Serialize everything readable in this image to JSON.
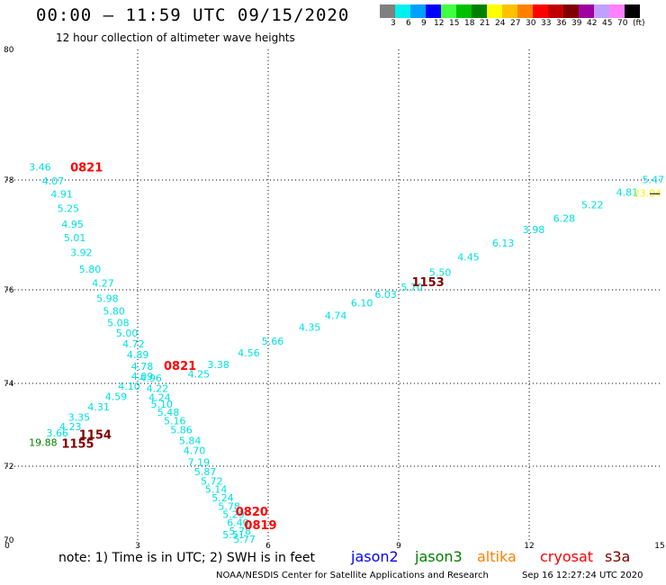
{
  "header": {
    "title": "00:00 — 11:59 UTC 09/15/2020",
    "subtitle": "12 hour collection of altimeter wave heights"
  },
  "colorbar": {
    "colors": [
      "#808080",
      "#00f0f0",
      "#00a0ff",
      "#0000ff",
      "#40ff40",
      "#00c000",
      "#008000",
      "#ffff00",
      "#ffc000",
      "#ff8000",
      "#ff0000",
      "#c00000",
      "#800000",
      "#a000a0",
      "#c0a0ff",
      "#ff80ff",
      "#000000"
    ],
    "labels": [
      "3",
      "6",
      "9",
      "12",
      "15",
      "18",
      "21",
      "24",
      "27",
      "30",
      "33",
      "36",
      "39",
      "42",
      "45",
      "70",
      "(ft)"
    ]
  },
  "footer": {
    "note": "note:  1) Time is in UTC;  2) SWH is in feet",
    "satellites": [
      {
        "name": "jason2",
        "color": "#0000ff"
      },
      {
        "name": "jason3",
        "color": "#008000"
      },
      {
        "name": "altika",
        "color": "#ff8000"
      },
      {
        "name": "cryosat",
        "color": "#ff0000"
      },
      {
        "name": "s3a",
        "color": "#800000"
      }
    ],
    "credit": "NOAA/NESDIS Center for Satellite Applications and Research",
    "timestamp": "Sep 16 12:27:24 UTC 2020"
  },
  "chart_data": {
    "type": "scatter",
    "xlim": [
      0,
      15
    ],
    "ylim": [
      70,
      80
    ],
    "x_ticks": [
      "0",
      "3",
      "6",
      "9",
      "12",
      "15"
    ],
    "y_ticks": [
      "70",
      "72",
      "74",
      "76",
      "78",
      "80"
    ],
    "grid": true,
    "tracks": [
      {
        "time": "0821",
        "time_color": "#ff0000",
        "color": "#00e0e0",
        "label_pos": [
          1.45,
          78.2
        ],
        "points": [
          [
            0.5,
            78.2
          ],
          [
            0.8,
            77.98
          ],
          [
            1.0,
            77.75
          ],
          [
            1.15,
            77.48
          ],
          [
            1.25,
            77.2
          ],
          [
            1.3,
            76.95
          ],
          [
            1.45,
            76.68
          ],
          [
            1.65,
            76.38
          ],
          [
            1.95,
            76.12
          ],
          [
            2.05,
            75.82
          ],
          [
            2.2,
            75.55
          ],
          [
            2.3,
            75.3
          ],
          [
            2.5,
            75.08
          ],
          [
            2.65,
            74.85
          ],
          [
            2.75,
            74.62
          ],
          [
            2.85,
            74.37
          ],
          [
            3.05,
            74.12
          ],
          [
            3.2,
            73.88
          ],
          [
            3.25,
            73.66
          ]
        ],
        "values": [
          "3.46",
          "4.07",
          "4.91",
          "5.25",
          "4.95",
          "5.01",
          "3.92",
          "5.80",
          "4.27",
          "5.98",
          "5.80",
          "5.08",
          "5.00",
          "4.72",
          "4.89",
          "4.78",
          "4.96",
          "4.22",
          "4.24"
        ]
      },
      {
        "time": "0821",
        "time_color": "#ff0000",
        "color": "#00e0e0",
        "label_pos": [
          3.6,
          74.38
        ],
        "points": [
          [
            2.85,
            74.15
          ],
          [
            2.55,
            73.93
          ],
          [
            2.25,
            73.68
          ],
          [
            1.85,
            73.43
          ],
          [
            1.4,
            73.18
          ],
          [
            1.2,
            72.96
          ],
          [
            0.9,
            72.8
          ],
          [
            0.5,
            72.58
          ]
        ],
        "values": [
          "4.09",
          "4.10",
          "4.59",
          "4.31",
          "3.35",
          "4.23",
          "3.66",
          "19.88"
        ],
        "value_colors": [
          "#00e0e0",
          "#00e0e0",
          "#00e0e0",
          "#00e0e0",
          "#00e0e0",
          "#00e0e0",
          "#00e0e0",
          "#008000"
        ]
      },
      {
        "time": "0819",
        "time_color": "#ff0000",
        "color": "#00e0e0",
        "label_pos": [
          5.45,
          70.42
        ],
        "points": [
          [
            3.3,
            73.5
          ],
          [
            3.45,
            73.3
          ],
          [
            3.6,
            73.1
          ],
          [
            3.75,
            72.88
          ],
          [
            3.95,
            72.62
          ],
          [
            4.05,
            72.38
          ],
          [
            4.15,
            72.1
          ],
          [
            4.3,
            71.85
          ],
          [
            4.45,
            71.6
          ],
          [
            4.55,
            71.38
          ],
          [
            4.7,
            71.15
          ],
          [
            4.85,
            70.92
          ],
          [
            4.95,
            70.7
          ],
          [
            5.05,
            70.48
          ],
          [
            5.1,
            70.25
          ],
          [
            5.2,
            70.02
          ]
        ],
        "values": [
          "5.10",
          "5.48",
          "5.16",
          "5.86",
          "5.84",
          "4.70",
          "7.19",
          "5.87",
          "5.72",
          "5.14",
          "5.24",
          "5.78",
          "5.29",
          "6.40",
          "5.78",
          "5.77"
        ]
      },
      {
        "time": "0820",
        "time_color": "#ff0000",
        "color": "#00e0e0",
        "label_pos": [
          5.25,
          70.78
        ],
        "points": [
          [
            4.95,
            70.15
          ]
        ],
        "values": [
          "5.51"
        ]
      },
      {
        "time": "1153",
        "time_color": "#800000",
        "color": "#00e0e0",
        "label_pos": [
          9.3,
          76.15
        ],
        "points": [
          [
            4.15,
            74.2
          ],
          [
            4.6,
            74.4
          ],
          [
            5.3,
            74.65
          ],
          [
            5.85,
            74.9
          ],
          [
            6.7,
            75.2
          ],
          [
            7.3,
            75.45
          ],
          [
            7.9,
            75.72
          ],
          [
            8.45,
            75.9
          ],
          [
            9.05,
            76.05
          ],
          [
            9.7,
            76.32
          ],
          [
            10.35,
            76.6
          ],
          [
            11.15,
            76.85
          ],
          [
            11.85,
            77.1
          ],
          [
            12.55,
            77.3
          ],
          [
            13.2,
            77.55
          ],
          [
            14.0,
            77.78
          ],
          [
            14.6,
            78.01
          ]
        ],
        "values": [
          "4.25",
          "3.38",
          "4.56",
          "5.66",
          "4.35",
          "4.74",
          "6.10",
          "6.03",
          "5.70",
          "5.50",
          "4.45",
          "6.13",
          "3.98",
          "6.28",
          "5.22",
          "4.81",
          "5.47"
        ]
      },
      {
        "time": "1154",
        "time_color": "#800000",
        "color": "#800000",
        "label_pos": [
          1.65,
          72.77
        ],
        "points": [],
        "values": []
      },
      {
        "time": "1155",
        "time_color": "#800000",
        "color": "#800000",
        "label_pos": [
          1.25,
          72.55
        ],
        "points": [],
        "values": []
      }
    ],
    "extra_points": [
      {
        "x": 14.6,
        "y": 77.76,
        "value": "23.04",
        "color": "#ffee00"
      }
    ]
  }
}
